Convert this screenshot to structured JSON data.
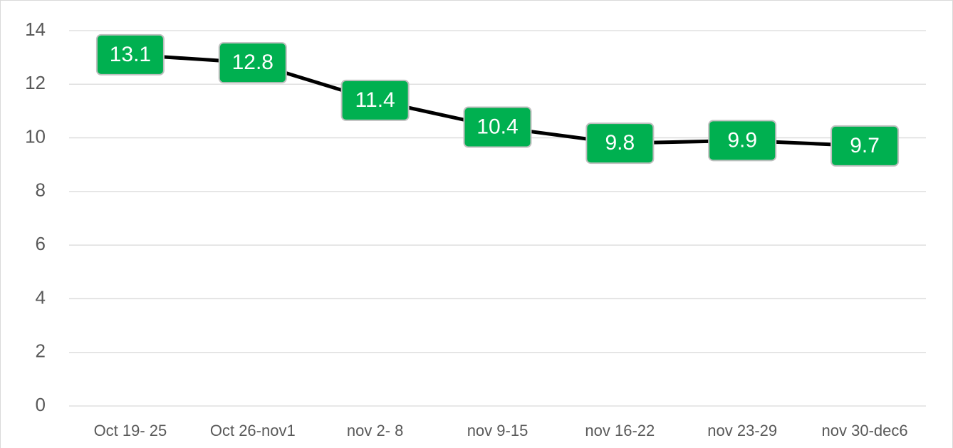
{
  "chart_data": {
    "type": "line",
    "categories": [
      "Oct 19- 25",
      "Oct 26-nov1",
      "nov 2- 8",
      "nov 9-15",
      "nov 16-22",
      "nov 23-29",
      "nov 30-dec6"
    ],
    "values": [
      13.1,
      12.8,
      11.4,
      10.4,
      9.8,
      9.9,
      9.7
    ],
    "color": "#000000",
    "label_color": "#00b050",
    "ylim": [
      0,
      14
    ],
    "yticks": [
      0,
      2,
      4,
      6,
      8,
      10,
      12,
      14
    ],
    "grid": true
  }
}
